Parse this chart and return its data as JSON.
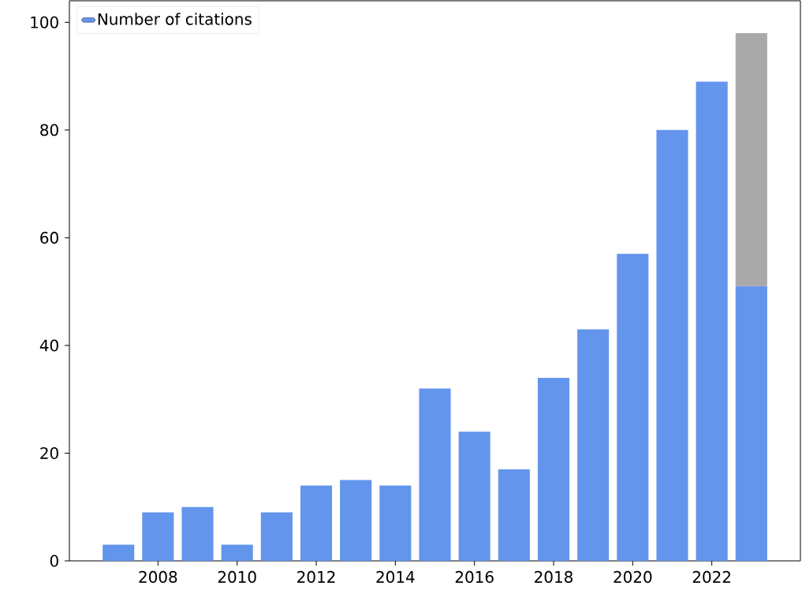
{
  "chart_data": {
    "type": "bar",
    "stacked": true,
    "x": [
      2007,
      2008,
      2009,
      2010,
      2011,
      2012,
      2013,
      2014,
      2015,
      2016,
      2017,
      2018,
      2019,
      2020,
      2021,
      2022,
      2023
    ],
    "series": [
      {
        "name": "Number of citations",
        "color": "#6495ed",
        "values": [
          3,
          9,
          10,
          3,
          9,
          14,
          15,
          14,
          32,
          24,
          17,
          34,
          43,
          57,
          80,
          89,
          51
        ]
      },
      {
        "color": "#a9a9a9",
        "values": [
          null,
          null,
          null,
          null,
          null,
          null,
          null,
          null,
          null,
          null,
          null,
          null,
          null,
          null,
          null,
          null,
          47
        ]
      }
    ],
    "xlim": [
      2005.76,
      2024.24
    ],
    "ylim": [
      0,
      104
    ],
    "xticks": [
      2008,
      2010,
      2012,
      2014,
      2016,
      2018,
      2020,
      2022
    ],
    "yticks": [
      0,
      20,
      40,
      60,
      80,
      100
    ],
    "grid": false,
    "legend": "top left"
  }
}
